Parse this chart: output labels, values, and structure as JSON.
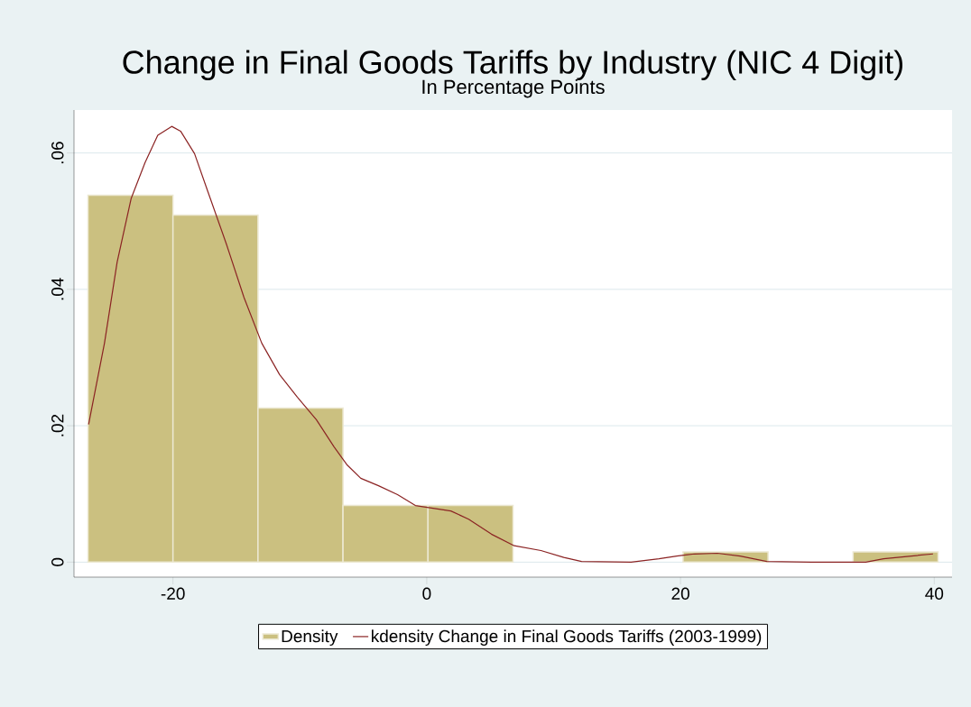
{
  "chart_data": {
    "type": "histogram",
    "title": "Change in Final Goods Tariffs by Industry (NIC 4 Digit)",
    "subtitle": "In Percentage Points",
    "series": [
      {
        "name": "Density",
        "color": "#cbc080",
        "bins": [
          -26.7,
          -20.0,
          -13.3,
          -6.6,
          0.1,
          6.8,
          13.5,
          20.2,
          26.9,
          33.6,
          40.3
        ],
        "values": [
          0.0538,
          0.0509,
          0.0226,
          0.0083,
          0.0083,
          0,
          0,
          0.0015,
          0,
          0.0015
        ]
      },
      {
        "name": "kdensity Change in Final Goods Tariffs (2003-1999)",
        "type": "line",
        "color": "#8b2323",
        "x": [
          -26.65,
          -25.4,
          -24.4,
          -23.3,
          -22.2,
          -21.2,
          -20.1,
          -19.4,
          -18.3,
          -17.3,
          -15.8,
          -14.4,
          -13.0,
          -11.6,
          -10.2,
          -8.7,
          -7.3,
          -6.3,
          -5.2,
          -3.8,
          -2.3,
          -0.9,
          0.5,
          1.9,
          3.3,
          5.1,
          6.9,
          9.0,
          10.8,
          12.2,
          16.1,
          18.3,
          19.7,
          21.1,
          22.9,
          24.7,
          26.8,
          30.3,
          34.6,
          36.0,
          38.2,
          39.9
        ],
        "values": [
          0.0202,
          0.0321,
          0.044,
          0.0533,
          0.0586,
          0.0626,
          0.0639,
          0.0632,
          0.0599,
          0.0546,
          0.0467,
          0.0388,
          0.0321,
          0.0275,
          0.0242,
          0.0209,
          0.0169,
          0.0143,
          0.0123,
          0.0112,
          0.0099,
          0.0083,
          0.0079,
          0.0075,
          0.0063,
          0.0041,
          0.0024,
          0.0017,
          0.0007,
          0.0001,
          0,
          0.0005,
          0.0009,
          0.0012,
          0.0013,
          0.0009,
          0.0001,
          0,
          0,
          0.0005,
          0.0009,
          0.0012
        ]
      }
    ],
    "xlim": [
      -27.8,
      41.4
    ],
    "ylim": [
      -0.0022,
      0.0663
    ],
    "xticks": [
      -20,
      0,
      20,
      40
    ],
    "yticks": [
      0,
      {
        "value": 0.02,
        "label": ".02"
      },
      {
        "value": 0.04,
        "label": ".04"
      },
      {
        "value": 0.06,
        "label": ".06"
      }
    ],
    "grid": "y",
    "legend": "bottom"
  }
}
